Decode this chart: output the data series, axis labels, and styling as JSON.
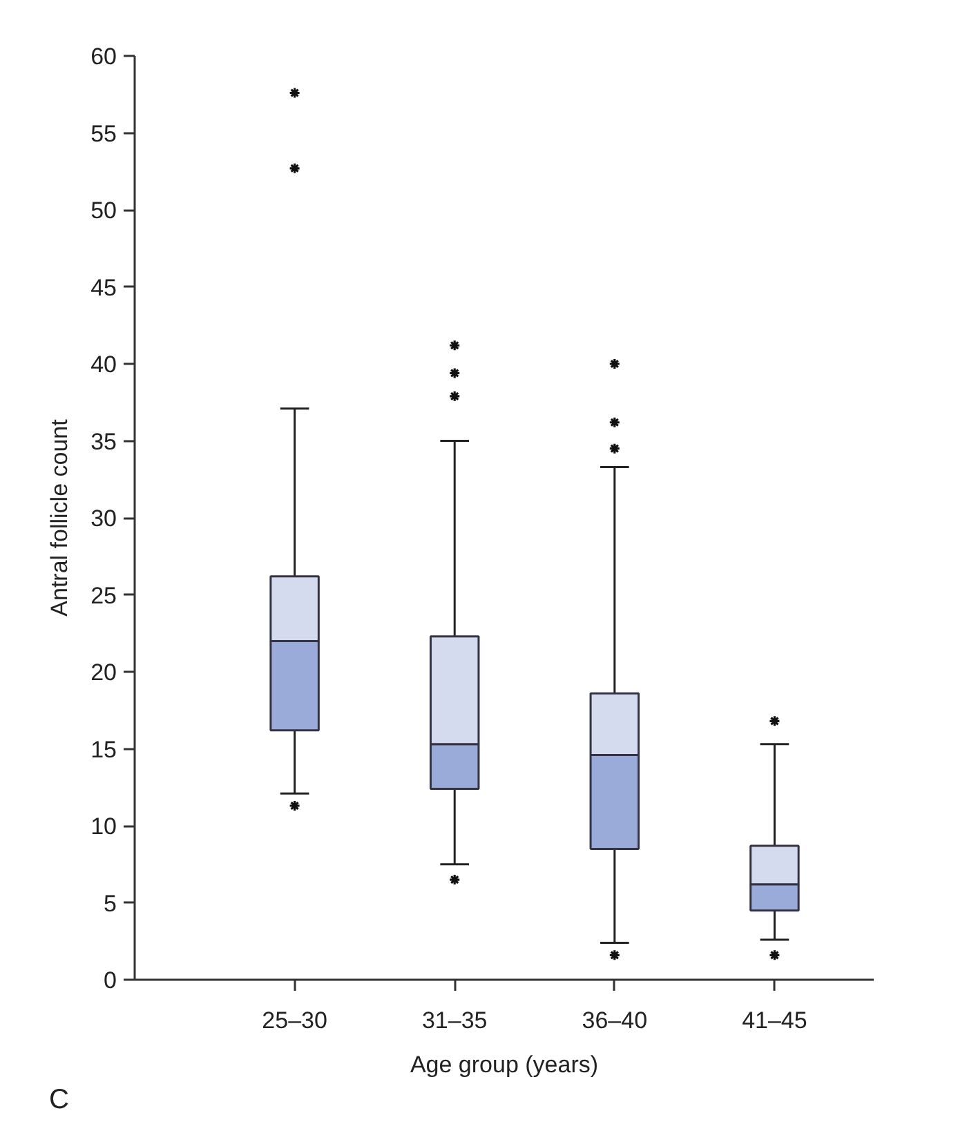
{
  "chart_data": {
    "type": "box",
    "categories": [
      "25–30",
      "31–35",
      "36–40",
      "41–45"
    ],
    "series": [
      {
        "color": "#9babd9",
        "boxes": [
          {
            "low": 12.1,
            "q1": 16.2,
            "median": 22.0,
            "q3": 26.2,
            "high": 37.1,
            "outliers": [
              57.6,
              52.7,
              11.3
            ]
          },
          {
            "low": 7.5,
            "q1": 12.4,
            "median": 15.3,
            "q3": 22.3,
            "high": 35.0,
            "outliers": [
              41.2,
              39.4,
              37.9,
              6.5
            ]
          },
          {
            "low": 2.4,
            "q1": 8.5,
            "median": 14.6,
            "q3": 18.6,
            "high": 33.3,
            "outliers": [
              40.0,
              36.2,
              34.5,
              1.6
            ]
          },
          {
            "low": 2.6,
            "q1": 4.5,
            "median": 6.2,
            "q3": 8.7,
            "high": 15.3,
            "outliers": [
              16.8,
              1.6
            ]
          }
        ]
      }
    ],
    "xlabel": "Age group (years)",
    "ylabel": "Antral follicle count",
    "ylim": [
      0,
      60
    ],
    "yticks": [
      0,
      5,
      10,
      15,
      20,
      25,
      30,
      35,
      40,
      45,
      50,
      55,
      60
    ],
    "grid": false,
    "marker": "star",
    "annotations": [
      "C"
    ]
  }
}
